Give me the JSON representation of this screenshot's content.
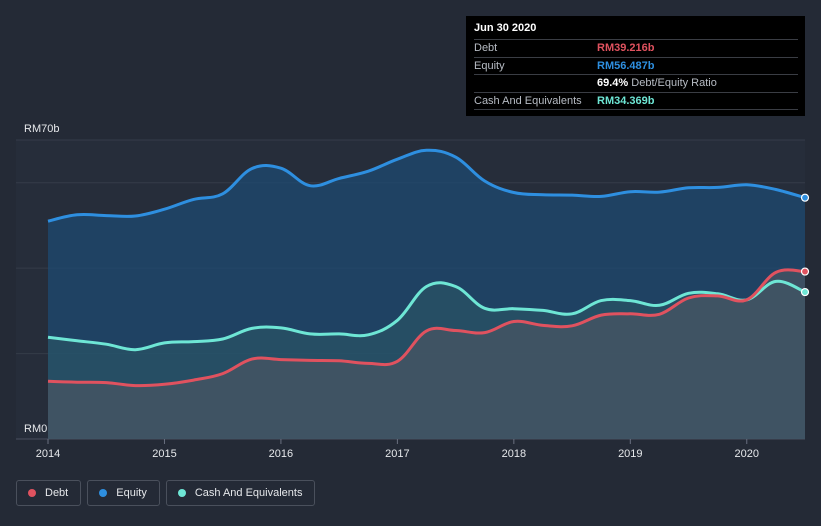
{
  "chart_data": {
    "type": "area",
    "x_unit": "year",
    "xlim": [
      2014.0,
      2020.5
    ],
    "ylim": [
      0,
      70
    ],
    "y_tick_labels": [
      "RM70b",
      "RM0"
    ],
    "x_tick_labels": [
      "2014",
      "2015",
      "2016",
      "2017",
      "2018",
      "2019",
      "2020"
    ],
    "x_ticks": [
      2014,
      2015,
      2016,
      2017,
      2018,
      2019,
      2020
    ],
    "grid": true,
    "legend_position": "bottom-left",
    "series": [
      {
        "name": "Equity",
        "color": "#2e8fe0",
        "x": [
          2014.0,
          2014.25,
          2014.5,
          2014.75,
          2015.0,
          2015.25,
          2015.5,
          2015.75,
          2016.0,
          2016.25,
          2016.5,
          2016.75,
          2017.0,
          2017.25,
          2017.5,
          2017.75,
          2018.0,
          2018.25,
          2018.5,
          2018.75,
          2019.0,
          2019.25,
          2019.5,
          2019.75,
          2020.0,
          2020.25,
          2020.5
        ],
        "values": [
          51.0,
          52.5,
          52.3,
          52.2,
          53.8,
          56.1,
          57.4,
          63.3,
          63.4,
          59.3,
          61.0,
          62.7,
          65.5,
          67.6,
          66.0,
          60.4,
          57.7,
          57.2,
          57.1,
          56.8,
          57.9,
          57.8,
          58.8,
          58.9,
          59.5,
          58.4,
          56.5
        ]
      },
      {
        "name": "Cash And Equivalents",
        "color": "#6ee6d5",
        "x": [
          2014.0,
          2014.25,
          2014.5,
          2014.75,
          2015.0,
          2015.25,
          2015.5,
          2015.75,
          2016.0,
          2016.25,
          2016.5,
          2016.75,
          2017.0,
          2017.25,
          2017.5,
          2017.75,
          2018.0,
          2018.25,
          2018.5,
          2018.75,
          2019.0,
          2019.25,
          2019.5,
          2019.75,
          2020.0,
          2020.25,
          2020.5
        ],
        "values": [
          23.8,
          23.0,
          22.2,
          20.9,
          22.5,
          22.8,
          23.4,
          25.9,
          26.0,
          24.6,
          24.6,
          24.4,
          27.8,
          35.7,
          35.7,
          30.6,
          30.5,
          30.1,
          29.3,
          32.4,
          32.4,
          31.3,
          34.1,
          34.0,
          32.6,
          36.9,
          34.4
        ]
      },
      {
        "name": "Debt",
        "color": "#e0525f",
        "x": [
          2014.0,
          2014.25,
          2014.5,
          2014.75,
          2015.0,
          2015.25,
          2015.5,
          2015.75,
          2016.0,
          2016.25,
          2016.5,
          2016.75,
          2017.0,
          2017.25,
          2017.5,
          2017.75,
          2018.0,
          2018.25,
          2018.5,
          2018.75,
          2019.0,
          2019.25,
          2019.5,
          2019.75,
          2020.0,
          2020.25,
          2020.5
        ],
        "values": [
          13.5,
          13.3,
          13.2,
          12.5,
          12.8,
          13.8,
          15.3,
          18.7,
          18.6,
          18.4,
          18.3,
          17.7,
          18.2,
          25.3,
          25.4,
          24.9,
          27.5,
          26.6,
          26.5,
          29.0,
          29.3,
          29.2,
          33.0,
          33.5,
          32.6,
          39.0,
          39.2
        ]
      }
    ]
  },
  "tooltip": {
    "date": "Jun 30 2020",
    "rows": {
      "debt": {
        "label": "Debt",
        "value": "RM39.216b",
        "color": "#e0525f"
      },
      "equity": {
        "label": "Equity",
        "value": "RM56.487b",
        "color": "#2e8fe0"
      },
      "ratio": {
        "value": "69.4%",
        "label": "Debt/Equity Ratio"
      },
      "cash": {
        "label": "Cash And Equivalents",
        "value": "RM34.369b",
        "color": "#6ee6d5"
      }
    }
  },
  "legend": [
    {
      "label": "Debt",
      "color": "#e0525f"
    },
    {
      "label": "Equity",
      "color": "#2e8fe0"
    },
    {
      "label": "Cash And Equivalents",
      "color": "#6ee6d5"
    }
  ]
}
